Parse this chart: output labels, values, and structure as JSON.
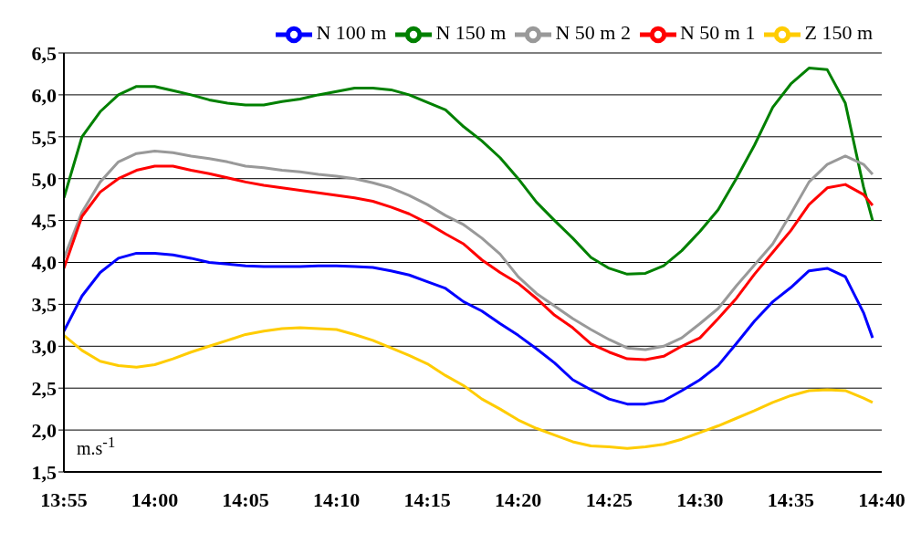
{
  "chart_data": {
    "type": "line",
    "ylabel": "m.s$^{-1}$",
    "x": [
      13.9167,
      13.9333,
      13.95,
      13.9667,
      13.9833,
      14,
      14.0167,
      14.0333,
      14.05,
      14.0667,
      14.0833,
      14.1,
      14.1167,
      14.1333,
      14.15,
      14.1667,
      14.1833,
      14.2,
      14.2167,
      14.2333,
      14.25,
      14.2667,
      14.2833,
      14.3,
      14.3167,
      14.3333,
      14.35,
      14.3667,
      14.3833,
      14.4,
      14.4167,
      14.4333,
      14.45,
      14.4667,
      14.4833,
      14.5,
      14.5167,
      14.5333,
      14.55,
      14.5667,
      14.5833,
      14.6,
      14.6167,
      14.6333,
      14.65,
      14.6583
    ],
    "series": [
      {
        "name": "N 100 m",
        "color": "#0000ff",
        "values": [
          3.18,
          3.6,
          3.88,
          4.05,
          4.11,
          4.11,
          4.09,
          4.05,
          4.0,
          3.98,
          3.96,
          3.95,
          3.95,
          3.95,
          3.96,
          3.96,
          3.95,
          3.94,
          3.9,
          3.85,
          3.77,
          3.69,
          3.53,
          3.42,
          3.27,
          3.13,
          2.97,
          2.8,
          2.6,
          2.48,
          2.37,
          2.31,
          2.31,
          2.35,
          2.47,
          2.6,
          2.77,
          3.03,
          3.3,
          3.53,
          3.7,
          3.9,
          3.93,
          3.83,
          3.4,
          3.1
        ]
      },
      {
        "name": "N 150 m",
        "color": "#008000",
        "values": [
          4.77,
          5.5,
          5.8,
          6.0,
          6.1,
          6.1,
          6.05,
          6.0,
          5.94,
          5.9,
          5.88,
          5.88,
          5.92,
          5.95,
          6.0,
          6.04,
          6.08,
          6.08,
          6.06,
          6.0,
          5.91,
          5.82,
          5.62,
          5.45,
          5.25,
          5.0,
          4.72,
          4.5,
          4.29,
          4.06,
          3.93,
          3.86,
          3.87,
          3.96,
          4.14,
          4.37,
          4.63,
          5.0,
          5.4,
          5.85,
          6.13,
          6.32,
          6.3,
          5.9,
          4.9,
          4.5
        ]
      },
      {
        "name": "N 50 m 2",
        "color": "#999999",
        "values": [
          4.05,
          4.6,
          4.96,
          5.2,
          5.3,
          5.33,
          5.31,
          5.27,
          5.24,
          5.2,
          5.15,
          5.13,
          5.1,
          5.08,
          5.05,
          5.03,
          5.0,
          4.95,
          4.89,
          4.8,
          4.69,
          4.56,
          4.45,
          4.29,
          4.1,
          3.83,
          3.63,
          3.48,
          3.33,
          3.2,
          3.08,
          2.98,
          2.96,
          3.0,
          3.1,
          3.27,
          3.45,
          3.72,
          3.97,
          4.22,
          4.58,
          4.96,
          5.17,
          5.27,
          5.17,
          5.05
        ]
      },
      {
        "name": "N 50 m 1",
        "color": "#ff0000",
        "values": [
          3.93,
          4.55,
          4.84,
          5.0,
          5.1,
          5.15,
          5.15,
          5.1,
          5.06,
          5.01,
          4.96,
          4.92,
          4.89,
          4.86,
          4.83,
          4.8,
          4.77,
          4.73,
          4.66,
          4.58,
          4.47,
          4.34,
          4.22,
          4.03,
          3.88,
          3.75,
          3.57,
          3.37,
          3.22,
          3.03,
          2.93,
          2.85,
          2.84,
          2.88,
          3.0,
          3.1,
          3.33,
          3.57,
          3.86,
          4.12,
          4.38,
          4.69,
          4.89,
          4.93,
          4.81,
          4.68
        ]
      },
      {
        "name": "Z 150 m",
        "color": "#ffcc00",
        "values": [
          3.13,
          2.95,
          2.82,
          2.77,
          2.75,
          2.78,
          2.85,
          2.93,
          3.0,
          3.07,
          3.14,
          3.18,
          3.21,
          3.22,
          3.21,
          3.2,
          3.14,
          3.07,
          2.98,
          2.89,
          2.79,
          2.65,
          2.53,
          2.37,
          2.25,
          2.12,
          2.02,
          1.94,
          1.86,
          1.81,
          1.8,
          1.78,
          1.8,
          1.83,
          1.89,
          1.97,
          2.05,
          2.14,
          2.23,
          2.33,
          2.41,
          2.47,
          2.48,
          2.47,
          2.38,
          2.33
        ]
      }
    ],
    "xlim": [
      13.9167,
      14.6667
    ],
    "xticks": [
      {
        "value": 13.9167,
        "label": "13:55"
      },
      {
        "value": 14,
        "label": "14:00"
      },
      {
        "value": 14.0833,
        "label": "14:05"
      },
      {
        "value": 14.1667,
        "label": "14:10"
      },
      {
        "value": 14.25,
        "label": "14:15"
      },
      {
        "value": 14.3333,
        "label": "14:20"
      },
      {
        "value": 14.4167,
        "label": "14:25"
      },
      {
        "value": 14.5,
        "label": "14:30"
      },
      {
        "value": 14.5833,
        "label": "14:35"
      },
      {
        "value": 14.6667,
        "label": "14:40"
      }
    ],
    "ylim": [
      1.5,
      6.5
    ],
    "yticks": [
      {
        "value": 1.5,
        "label": "1,5"
      },
      {
        "value": 2,
        "label": "2,0"
      },
      {
        "value": 2.5,
        "label": "2,5"
      },
      {
        "value": 3,
        "label": "3,0"
      },
      {
        "value": 3.5,
        "label": "3,5"
      },
      {
        "value": 4,
        "label": "4,0"
      },
      {
        "value": 4.5,
        "label": "4,5"
      },
      {
        "value": 5,
        "label": "5,0"
      },
      {
        "value": 5.5,
        "label": "5,5"
      },
      {
        "value": 6,
        "label": "6,0"
      },
      {
        "value": 6.5,
        "label": "6,5"
      }
    ],
    "grid": "y",
    "legend": "top right",
    "marker": "none",
    "line_style": "solid"
  }
}
